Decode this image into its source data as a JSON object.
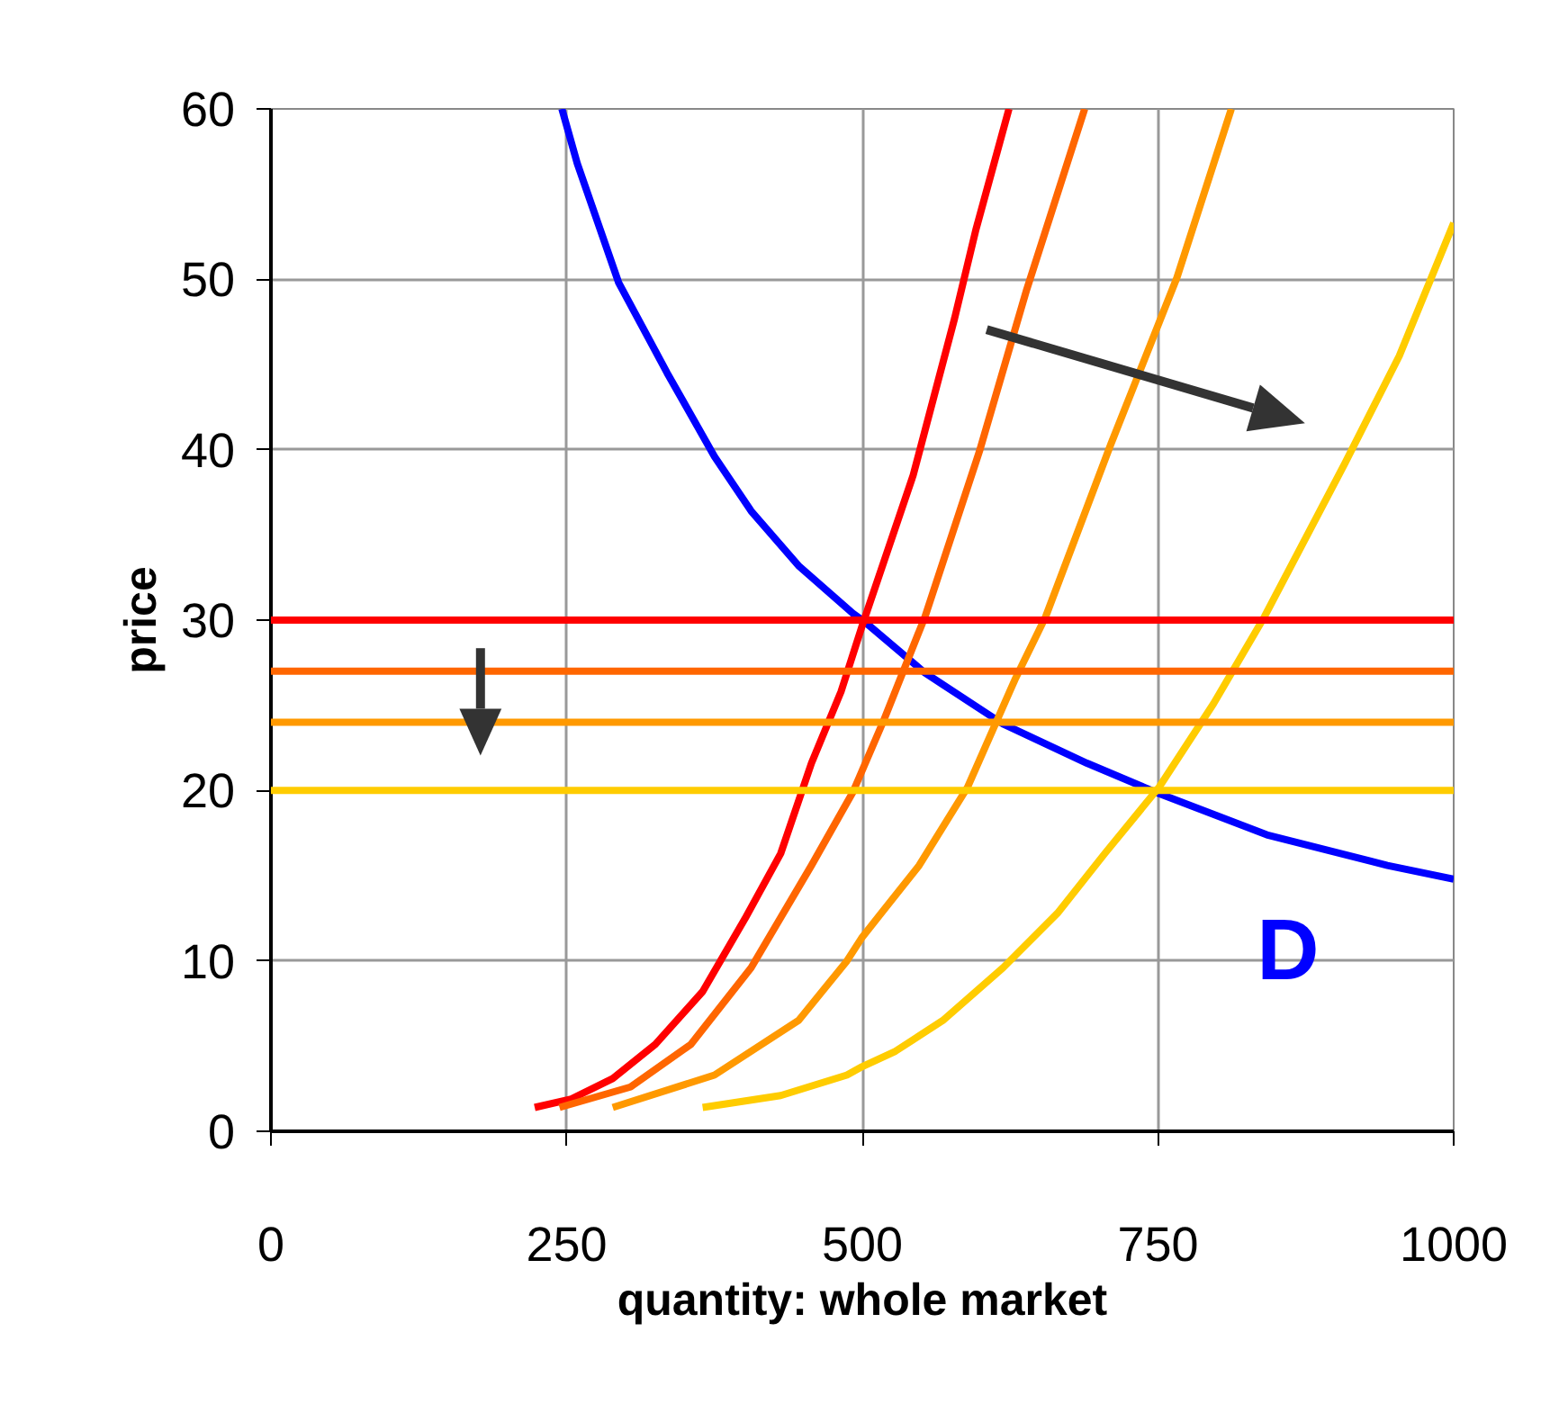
{
  "chart_data": {
    "type": "line",
    "xlabel": "quantity: whole market",
    "ylabel": "price",
    "xlim": [
      0,
      1000
    ],
    "ylim": [
      0,
      60
    ],
    "xticks": [
      0,
      250,
      500,
      750,
      1000
    ],
    "yticks": [
      0,
      10,
      20,
      30,
      40,
      50,
      60
    ],
    "grid": true,
    "series": [
      {
        "color": "#0000ff",
        "x": [
          246,
          259,
          294,
          335,
          375,
          406,
          446,
          492,
          502,
          553,
          619,
          690,
          748,
          842,
          944,
          1000
        ],
        "values": [
          60,
          56.8,
          49.8,
          44.5,
          39.6,
          36.4,
          33.2,
          30.4,
          29.9,
          26.9,
          23.9,
          21.6,
          19.9,
          17.4,
          15.6,
          14.8
        ]
      },
      {
        "color": "#ff0000",
        "x": [
          223,
          254,
          289,
          325,
          365,
          401,
          431,
          457,
          482,
          500,
          543,
          578,
          596,
          624
        ],
        "values": [
          1.4,
          1.9,
          3.1,
          5.1,
          8.2,
          12.5,
          16.3,
          21.6,
          25.8,
          29.7,
          38.5,
          47.7,
          52.9,
          60
        ]
      },
      {
        "color": "#ff6600",
        "x": [
          244,
          304,
          355,
          406,
          457,
          492,
          518,
          553,
          599,
          639,
          688
        ],
        "values": [
          1.4,
          2.6,
          5.1,
          9.6,
          15.6,
          19.9,
          24.1,
          30.2,
          39.9,
          49.4,
          60
        ]
      },
      {
        "color": "#ff9900",
        "x": [
          289,
          375,
          446,
          487,
          500,
          548,
          589,
          629,
          655,
          710,
          766,
          812
        ],
        "values": [
          1.4,
          3.3,
          6.5,
          10,
          11.4,
          15.6,
          20.2,
          26.5,
          30.2,
          40.3,
          50.1,
          60
        ]
      },
      {
        "color": "#ffcc00",
        "x": [
          365,
          431,
          487,
          500,
          528,
          568,
          619,
          665,
          705,
          751,
          797,
          840,
          908,
          954,
          1000
        ],
        "values": [
          1.4,
          2.1,
          3.3,
          3.8,
          4.7,
          6.5,
          9.6,
          12.8,
          16.3,
          20.2,
          25.1,
          30.2,
          39.2,
          45.5,
          53.3
        ]
      }
    ],
    "ref_lines": [
      {
        "axis": "y",
        "value": 30,
        "color": "#ff0000"
      },
      {
        "axis": "y",
        "value": 27,
        "color": "#ff6600"
      },
      {
        "axis": "y",
        "value": 24,
        "color": "#ff9900"
      },
      {
        "axis": "y",
        "value": 20,
        "color": "#ffcc00"
      }
    ],
    "annotations": [
      "D"
    ]
  }
}
